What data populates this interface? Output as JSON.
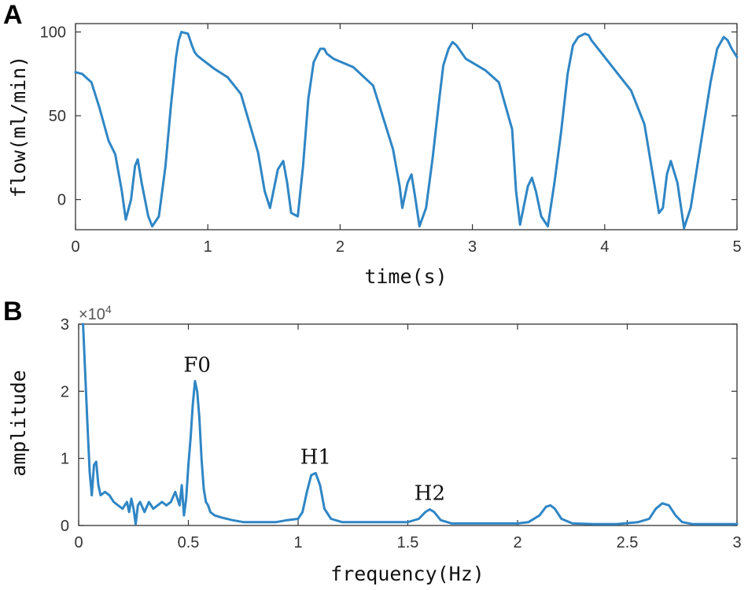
{
  "chart_data": [
    {
      "panel": "A",
      "type": "line",
      "xlabel": "time(s)",
      "ylabel": "flow(ml/min)",
      "xlim": [
        0,
        5
      ],
      "ylim": [
        -18,
        105
      ],
      "xticks": [
        "0",
        "1",
        "2",
        "3",
        "4",
        "5"
      ],
      "yticks": [
        "0",
        "50",
        "100"
      ],
      "grid": false,
      "color": "#2f86c5",
      "x": [
        0,
        0.05,
        0.12,
        0.18,
        0.25,
        0.3,
        0.35,
        0.38,
        0.42,
        0.45,
        0.47,
        0.5,
        0.55,
        0.58,
        0.63,
        0.68,
        0.72,
        0.76,
        0.78,
        0.8,
        0.85,
        0.88,
        0.9,
        0.92,
        0.95,
        1.05,
        1.15,
        1.25,
        1.38,
        1.43,
        1.47,
        1.53,
        1.57,
        1.6,
        1.63,
        1.68,
        1.72,
        1.76,
        1.8,
        1.85,
        1.88,
        1.9,
        1.95,
        2.1,
        2.25,
        2.4,
        2.45,
        2.47,
        2.51,
        2.54,
        2.57,
        2.6,
        2.65,
        2.7,
        2.75,
        2.78,
        2.82,
        2.85,
        2.88,
        2.95,
        3.1,
        3.2,
        3.3,
        3.33,
        3.36,
        3.42,
        3.45,
        3.48,
        3.52,
        3.57,
        3.62,
        3.67,
        3.72,
        3.76,
        3.8,
        3.85,
        3.88,
        3.9,
        4.0,
        4.1,
        4.2,
        4.3,
        4.38,
        4.41,
        4.44,
        4.47,
        4.5,
        4.55,
        4.6,
        4.65,
        4.7,
        4.75,
        4.8,
        4.85,
        4.9,
        4.93,
        4.96,
        5.0
      ],
      "y": [
        76,
        75,
        70,
        55,
        35,
        27,
        5,
        -12,
        0,
        20,
        24,
        10,
        -10,
        -16,
        -10,
        20,
        55,
        85,
        95,
        100,
        99,
        92,
        88,
        86,
        84,
        78,
        73,
        63,
        28,
        5,
        -5,
        18,
        23,
        10,
        -8,
        -10,
        20,
        60,
        82,
        90,
        90,
        87,
        84,
        79,
        68,
        30,
        8,
        -5,
        10,
        15,
        0,
        -16,
        -5,
        25,
        60,
        80,
        90,
        94,
        92,
        84,
        77,
        70,
        42,
        5,
        -15,
        8,
        13,
        5,
        -10,
        -16,
        10,
        40,
        75,
        92,
        97,
        99,
        98,
        95,
        85,
        75,
        65,
        45,
        7,
        -8,
        -5,
        15,
        23,
        10,
        -17,
        -5,
        20,
        45,
        70,
        90,
        97,
        95,
        90,
        85
      ]
    },
    {
      "panel": "B",
      "type": "line",
      "xlabel": "frequency(Hz)",
      "ylabel": "amplitude",
      "exponent": "×10^4",
      "exp_prefix": "×10",
      "exp_power": "4",
      "xlim": [
        0,
        3
      ],
      "ylim": [
        0,
        3
      ],
      "xticks": [
        "0",
        "0.5",
        "1",
        "1.5",
        "2",
        "2.5",
        "3"
      ],
      "yticks": [
        "0",
        "1",
        "2",
        "3"
      ],
      "grid": false,
      "color": "#2f86c5",
      "annotations": [
        {
          "text": "F0",
          "x": 0.54,
          "y": 2.15
        },
        {
          "text": "H1",
          "x": 1.08,
          "y": 0.78
        },
        {
          "text": "H2",
          "x": 1.6,
          "y": 0.24
        }
      ],
      "x": [
        0.02,
        0.04,
        0.05,
        0.06,
        0.07,
        0.08,
        0.09,
        0.1,
        0.12,
        0.14,
        0.16,
        0.18,
        0.2,
        0.22,
        0.23,
        0.24,
        0.25,
        0.26,
        0.27,
        0.28,
        0.3,
        0.32,
        0.34,
        0.36,
        0.38,
        0.4,
        0.42,
        0.44,
        0.46,
        0.47,
        0.48,
        0.49,
        0.5,
        0.51,
        0.52,
        0.53,
        0.54,
        0.55,
        0.56,
        0.57,
        0.58,
        0.59,
        0.6,
        0.62,
        0.65,
        0.7,
        0.75,
        0.8,
        0.85,
        0.9,
        0.95,
        1.0,
        1.02,
        1.04,
        1.06,
        1.08,
        1.1,
        1.12,
        1.15,
        1.2,
        1.3,
        1.4,
        1.5,
        1.55,
        1.58,
        1.6,
        1.62,
        1.65,
        1.7,
        1.8,
        1.9,
        2.0,
        2.05,
        2.1,
        2.13,
        2.15,
        2.17,
        2.2,
        2.25,
        2.35,
        2.45,
        2.55,
        2.6,
        2.63,
        2.66,
        2.69,
        2.72,
        2.75,
        2.8,
        2.9,
        3.0
      ],
      "y": [
        3.0,
        1.5,
        0.8,
        0.45,
        0.9,
        0.95,
        0.6,
        0.45,
        0.5,
        0.45,
        0.35,
        0.3,
        0.25,
        0.35,
        0.2,
        0.4,
        0.25,
        0.02,
        0.3,
        0.35,
        0.2,
        0.35,
        0.25,
        0.3,
        0.35,
        0.3,
        0.35,
        0.5,
        0.3,
        0.6,
        0.15,
        0.4,
        0.9,
        1.3,
        1.8,
        2.15,
        2.0,
        1.6,
        1.0,
        0.55,
        0.35,
        0.3,
        0.2,
        0.15,
        0.12,
        0.08,
        0.05,
        0.05,
        0.05,
        0.05,
        0.08,
        0.1,
        0.2,
        0.5,
        0.75,
        0.78,
        0.6,
        0.25,
        0.1,
        0.05,
        0.05,
        0.05,
        0.05,
        0.1,
        0.2,
        0.24,
        0.2,
        0.08,
        0.03,
        0.03,
        0.03,
        0.03,
        0.05,
        0.15,
        0.28,
        0.3,
        0.25,
        0.1,
        0.03,
        0.02,
        0.02,
        0.05,
        0.1,
        0.25,
        0.33,
        0.3,
        0.15,
        0.05,
        0.02,
        0.02,
        0.02
      ]
    }
  ]
}
